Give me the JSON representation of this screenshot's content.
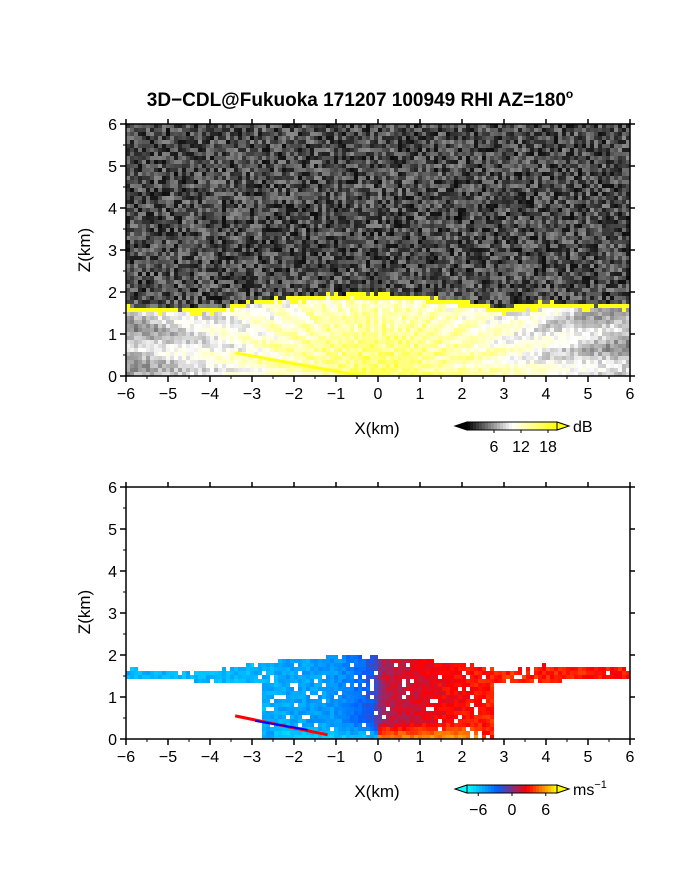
{
  "title": "3D−CDL@Fukuoka 171207 100949 RHI AZ=180",
  "title_superscript": "o",
  "chart_data": [
    {
      "type": "heatmap",
      "name": "backscatter-intensity",
      "xlabel": "X(km)",
      "ylabel": "Z(km)",
      "xlim": [
        -6,
        6
      ],
      "ylim": [
        0,
        6
      ],
      "xticks": [
        -6,
        -5,
        -4,
        -3,
        -2,
        -1,
        0,
        1,
        2,
        3,
        4,
        5,
        6
      ],
      "yticks": [
        0,
        1,
        2,
        3,
        4,
        5,
        6
      ],
      "colorbar": {
        "unit": "dB",
        "ticks": [
          6,
          12,
          18
        ],
        "range": [
          0,
          20
        ],
        "colors": [
          "#000000",
          "#ffffff",
          "#ffff00"
        ]
      },
      "layer_top": {
        "x": [
          -6,
          -5,
          -4,
          -3,
          -2,
          -1,
          -0.5,
          0,
          1,
          2,
          3,
          4,
          5,
          6
        ],
        "z": [
          1.65,
          1.6,
          1.6,
          1.8,
          1.9,
          1.95,
          2.0,
          1.95,
          1.9,
          1.8,
          1.6,
          1.75,
          1.7,
          1.7
        ]
      },
      "background_level_db": 3,
      "layer_level_db": 19,
      "ground_echo": {
        "x": [
          -3.4,
          -0.5
        ],
        "z": [
          0.55,
          0.02
        ]
      }
    },
    {
      "type": "heatmap",
      "name": "doppler-velocity",
      "xlabel": "X(km)",
      "ylabel": "Z(km)",
      "xlim": [
        -6,
        6
      ],
      "ylim": [
        0,
        6
      ],
      "xticks": [
        -6,
        -5,
        -4,
        -3,
        -2,
        -1,
        0,
        1,
        2,
        3,
        4,
        5,
        6
      ],
      "yticks": [
        0,
        1,
        2,
        3,
        4,
        5,
        6
      ],
      "colorbar": {
        "unit": "ms",
        "unit_superscript": "−1",
        "ticks": [
          "−6",
          "0",
          "6"
        ],
        "range": [
          -8,
          8
        ],
        "colors": [
          "#00ffff",
          "#0060ff",
          "#ff0000",
          "#ffff00"
        ]
      },
      "velocity_profile": {
        "x": [
          -6,
          -3,
          -1,
          -0.1,
          0.1,
          1,
          3,
          6
        ],
        "v": [
          -5.5,
          -5.5,
          -4.5,
          -2,
          1,
          2,
          3.5,
          3
        ]
      },
      "near_ground_velocity": {
        "left": -7,
        "right": 7
      },
      "ground_echo": {
        "x": [
          -3.4,
          -1.2
        ],
        "z": [
          0.55,
          0.1
        ],
        "colors": [
          "#ff0000",
          "#0000ff"
        ]
      }
    }
  ]
}
